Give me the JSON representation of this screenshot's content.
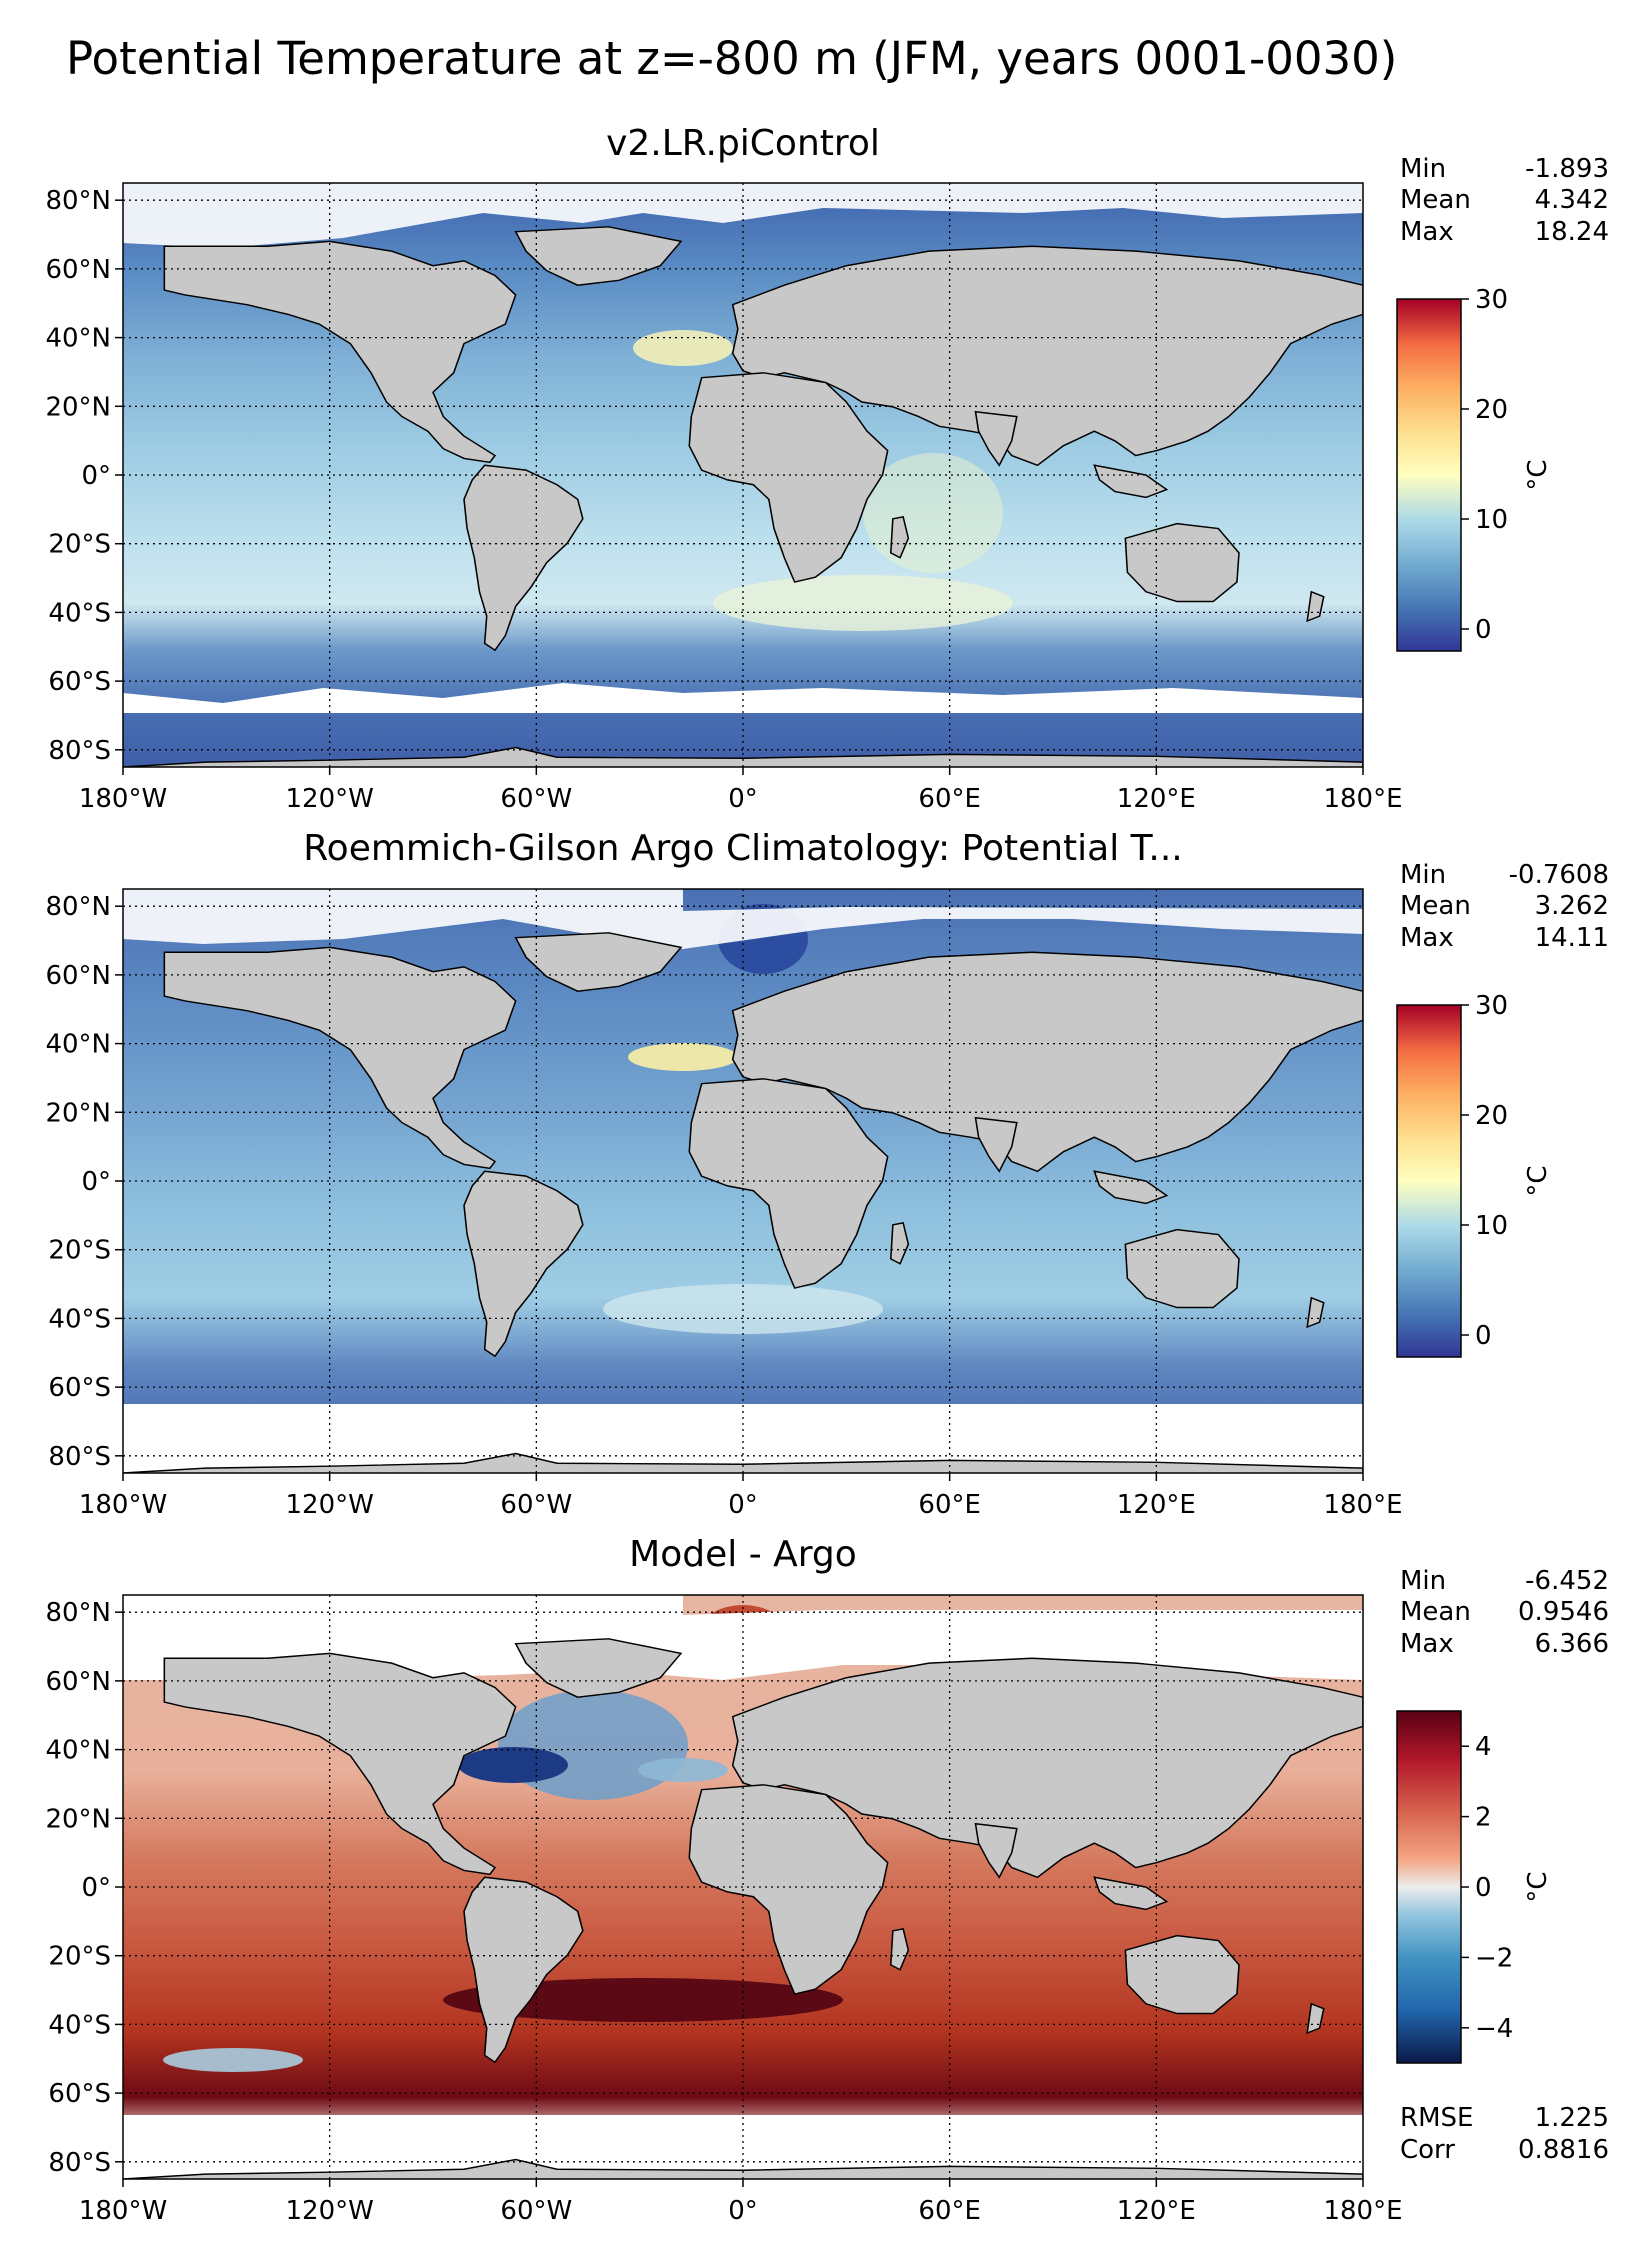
{
  "figure": {
    "title": "Potential Temperature at z=-800 m (JFM, years 0001-0030)"
  },
  "axes": {
    "lat_labels": [
      "80°N",
      "60°N",
      "40°N",
      "20°N",
      "0°",
      "20°S",
      "40°S",
      "60°S",
      "80°S"
    ],
    "lat_values": [
      80,
      60,
      40,
      20,
      0,
      -20,
      -40,
      -60,
      -80
    ],
    "lon_labels": [
      "180°W",
      "120°W",
      "60°W",
      "0°",
      "60°E",
      "120°E",
      "180°E"
    ],
    "lon_values": [
      -180,
      -120,
      -60,
      0,
      60,
      120,
      180
    ],
    "lat_range": [
      -85,
      85
    ],
    "lon_range": [
      -180,
      180
    ],
    "grid": true
  },
  "panels": [
    {
      "title": "v2.LR.piControl",
      "stats": [
        {
          "label": "Min",
          "value": "-1.893"
        },
        {
          "label": "Mean",
          "value": "4.342"
        },
        {
          "label": "Max",
          "value": "18.24"
        }
      ],
      "colorbar": {
        "label": "°C",
        "ticks": [
          "0",
          "10",
          "20",
          "30"
        ],
        "tick_values": [
          0,
          10,
          20,
          30
        ],
        "range": [
          -2,
          30
        ],
        "cmap": "RdYlBu_r"
      }
    },
    {
      "title": "Roemmich-Gilson Argo Climatology: Potential T...",
      "stats": [
        {
          "label": "Min",
          "value": "-0.7608"
        },
        {
          "label": "Mean",
          "value": "3.262"
        },
        {
          "label": "Max",
          "value": "14.11"
        }
      ],
      "colorbar": {
        "label": "°C",
        "ticks": [
          "0",
          "10",
          "20",
          "30"
        ],
        "tick_values": [
          0,
          10,
          20,
          30
        ],
        "range": [
          -2,
          30
        ],
        "cmap": "RdYlBu_r"
      }
    },
    {
      "title": "Model - Argo",
      "stats": [
        {
          "label": "Min",
          "value": "-6.452"
        },
        {
          "label": "Mean",
          "value": "0.9546"
        },
        {
          "label": "Max",
          "value": "6.366"
        }
      ],
      "extra_stats": [
        {
          "label": "RMSE",
          "value": "1.225"
        },
        {
          "label": "Corr",
          "value": "0.8816"
        }
      ],
      "colorbar": {
        "label": "°C",
        "ticks": [
          "4",
          "2",
          "0",
          "−2",
          "−4"
        ],
        "tick_values": [
          4,
          2,
          0,
          -2,
          -4
        ],
        "range": [
          -5,
          5
        ],
        "cmap": "RdBu_r"
      }
    }
  ],
  "colors": {
    "land": "#c8c8c8",
    "missing": "#ffffff",
    "cold": "#3b5ba7",
    "mid": "#7fb3d5",
    "warm": "#d6ecf2",
    "diff_pos": "#c2472f",
    "diff_neg": "#1f4e9c"
  }
}
